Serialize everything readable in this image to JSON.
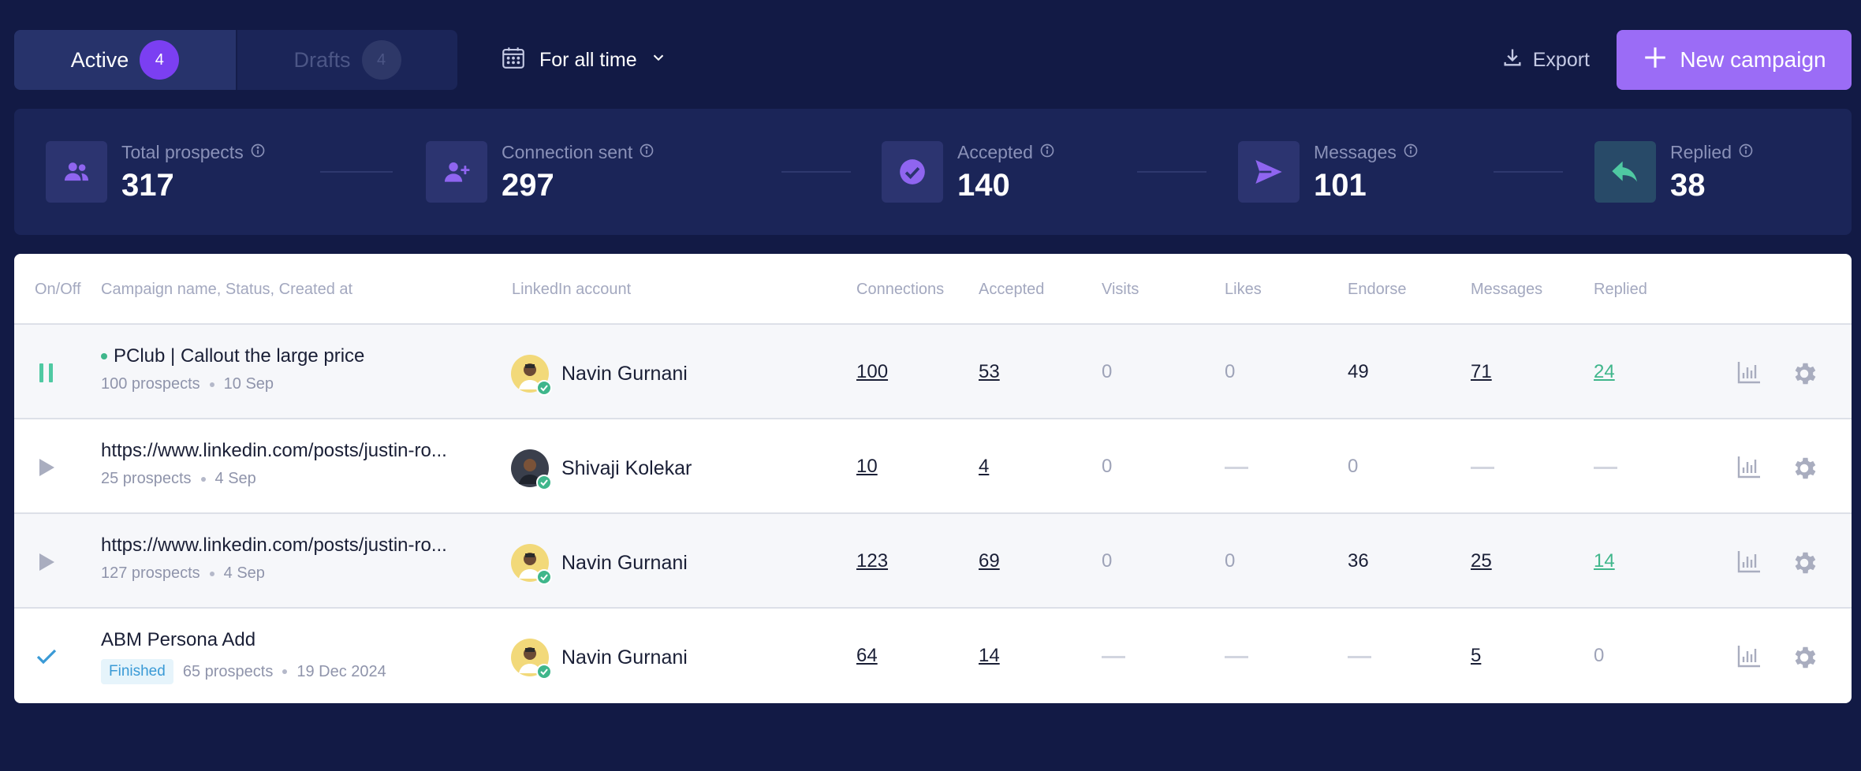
{
  "tabs": {
    "active": {
      "label": "Active",
      "count": "4"
    },
    "drafts": {
      "label": "Drafts",
      "count": "4"
    }
  },
  "date_filter": {
    "label": "For all time"
  },
  "export": {
    "label": "Export"
  },
  "new_campaign": {
    "label": "New campaign"
  },
  "stats": [
    {
      "label": "Total prospects",
      "value": "317"
    },
    {
      "label": "Connection sent",
      "value": "297"
    },
    {
      "label": "Accepted",
      "value": "140"
    },
    {
      "label": "Messages",
      "value": "101"
    },
    {
      "label": "Replied",
      "value": "38"
    }
  ],
  "colors": {
    "accent": "#9b6cf6",
    "background": "#121a45",
    "green": "#3fb68b"
  },
  "table": {
    "headers": [
      "On/Off",
      "Campaign name, Status, Created at",
      "LinkedIn account",
      "Connections",
      "Accepted",
      "Visits",
      "Likes",
      "Endorse",
      "Messages",
      "Replied"
    ],
    "rows": [
      {
        "state": "pause",
        "name": "PClub | Callout the large price",
        "prospects": "100 prospects",
        "date": "10 Sep",
        "account": "Navin Gurnani",
        "connections": "100",
        "accepted": "53",
        "visits": "0",
        "likes": "0",
        "endorse": "49",
        "messages": "71",
        "replied": "24"
      },
      {
        "state": "play",
        "name": "https://www.linkedin.com/posts/justin-ro...",
        "prospects": "25 prospects",
        "date": "4 Sep",
        "account": "Shivaji Kolekar",
        "connections": "10",
        "accepted": "4",
        "visits": "0",
        "likes": "—",
        "endorse": "0",
        "messages": "—",
        "replied": "—"
      },
      {
        "state": "play",
        "name": "https://www.linkedin.com/posts/justin-ro...",
        "prospects": "127 prospects",
        "date": "4 Sep",
        "account": "Navin Gurnani",
        "connections": "123",
        "accepted": "69",
        "visits": "0",
        "likes": "0",
        "endorse": "36",
        "messages": "25",
        "replied": "14"
      },
      {
        "state": "finished",
        "name": "ABM Persona Add",
        "badge": "Finished",
        "prospects": "65 prospects",
        "date": "19 Dec 2024",
        "account": "Navin Gurnani",
        "connections": "64",
        "accepted": "14",
        "visits": "—",
        "likes": "—",
        "endorse": "—",
        "messages": "5",
        "replied": "0"
      }
    ]
  }
}
